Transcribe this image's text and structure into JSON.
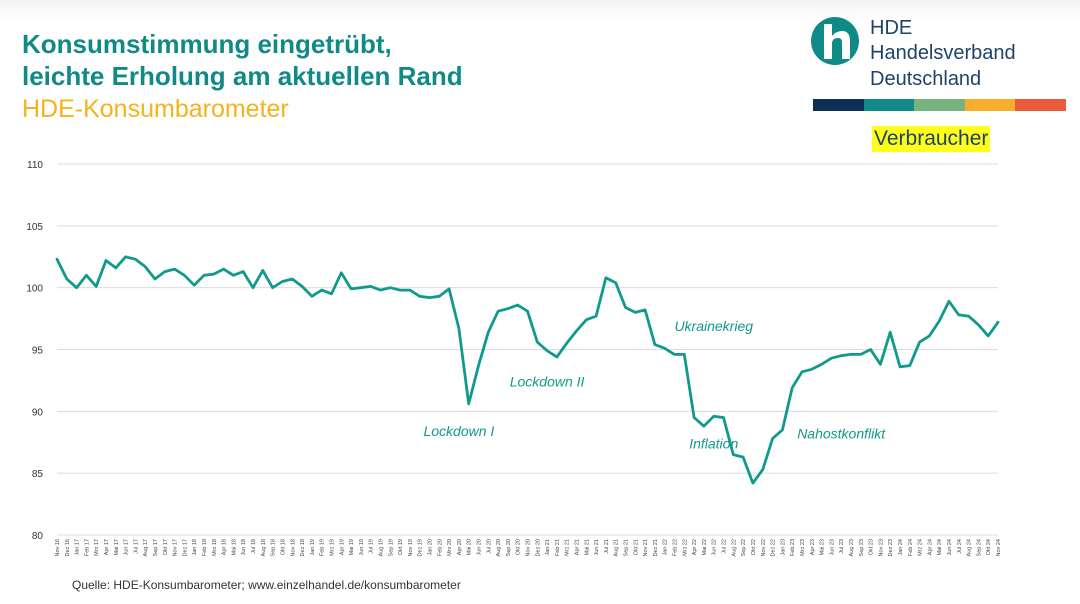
{
  "header": {
    "title_line1": "Konsumstimmung eingetrübt,",
    "title_line2": "leichte Erholung am aktuellen Rand",
    "subtitle": "HDE-Konsumbarometer"
  },
  "logo": {
    "line1": "HDE",
    "line2": "Handelsverband",
    "line3": "Deutschland",
    "stripe_colors": [
      "#0e2f54",
      "#0f8a86",
      "#76b37f",
      "#f7ae2d",
      "#ea5b3a"
    ]
  },
  "badge": {
    "label": "Verbraucher"
  },
  "colors": {
    "line": "#109a8c",
    "title": "#0f8a86",
    "subtitle": "#f5b21b",
    "annotation": "#109a8c",
    "badge_bg": "#ffff1a"
  },
  "source": "Quelle: HDE-Konsumbarometer; www.einzelhandel.de/konsumbarometer",
  "chart_data": {
    "type": "line",
    "title": "",
    "xlabel": "",
    "ylabel": "",
    "ylim": [
      80,
      110
    ],
    "yticks": [
      80,
      85,
      90,
      95,
      100,
      105,
      110
    ],
    "grid": true,
    "x": [
      "Nov 16",
      "Dez 16",
      "Jan 17",
      "Feb 17",
      "Mrz 17",
      "Apr 17",
      "Mai 17",
      "Jun 17",
      "Jul 17",
      "Aug 17",
      "Sep 17",
      "Okt 17",
      "Nov 17",
      "Dez 17",
      "Jan 18",
      "Feb 18",
      "Mrz 18",
      "Apr 18",
      "Mai 18",
      "Jun 18",
      "Jul 18",
      "Aug 18",
      "Sep 18",
      "Okt 18",
      "Nov 18",
      "Dez 18",
      "Jan 19",
      "Feb 19",
      "Mrz 19",
      "Apr 19",
      "Mai 19",
      "Jun 19",
      "Jul 19",
      "Aug 19",
      "Sep 19",
      "Okt 19",
      "Nov 19",
      "Dez 19",
      "Jan 20",
      "Feb 20",
      "Mrz 20",
      "Apr 20",
      "Mai 20",
      "Jun 20",
      "Jul 20",
      "Aug 20",
      "Sep 20",
      "Okt 20",
      "Nov 20",
      "Dez 20",
      "Jan 21",
      "Feb 21",
      "Mrz 21",
      "Apr 21",
      "Mai 21",
      "Jun 21",
      "Jul 21",
      "Aug 21",
      "Sep 21",
      "Okt 21",
      "Nov 21",
      "Dez 21",
      "Jan 22",
      "Feb 22",
      "Mrz 22",
      "Apr 22",
      "Mai 22",
      "Jun 22",
      "Jul 22",
      "Aug 22",
      "Sep 22",
      "Okt 22",
      "Nov 22",
      "Dez 22",
      "Jan 23",
      "Feb 23",
      "Mrz 23",
      "Apr 23",
      "Mai 23",
      "Jun 23",
      "Jul 23",
      "Aug 23",
      "Sep 23",
      "Okt 23",
      "Nov 23",
      "Dez 23",
      "Jan 24",
      "Feb 24",
      "Mrz 24",
      "Apr 24",
      "Mai 24",
      "Jun 24",
      "Jul 24",
      "Aug 24",
      "Sep 24",
      "Okt 24",
      "Nov 24"
    ],
    "series": [
      {
        "values": [
          102.3,
          100.7,
          100.0,
          101.0,
          100.1,
          102.2,
          101.6,
          102.5,
          102.3,
          101.7,
          100.7,
          101.3,
          101.5,
          101.0,
          100.2,
          101.0,
          101.1,
          101.5,
          101.0,
          101.3,
          100.0,
          101.4,
          100.0,
          100.5,
          100.7,
          100.1,
          99.3,
          99.8,
          99.5,
          101.2,
          99.9,
          100.0,
          100.1,
          99.8,
          100.0,
          99.8,
          99.8,
          99.3,
          99.2,
          99.3,
          99.9,
          96.7,
          90.6,
          93.7,
          96.4,
          98.1,
          98.3,
          98.6,
          98.1,
          95.6,
          94.9,
          94.4,
          95.5,
          96.5,
          97.4,
          97.7,
          100.8,
          100.4,
          98.4,
          98.0,
          98.2,
          95.4,
          95.1,
          94.6,
          94.6,
          89.5,
          88.8,
          89.6,
          89.5,
          86.5,
          86.3,
          84.2,
          85.3,
          87.8,
          88.5,
          91.9,
          93.2,
          93.4,
          93.8,
          94.3,
          94.5,
          94.6,
          94.6,
          95.0,
          93.8,
          96.4,
          93.6,
          93.7,
          95.6,
          96.1,
          97.3,
          98.9,
          97.8,
          97.7,
          97.0,
          96.1,
          97.2
        ]
      }
    ],
    "annotations": [
      {
        "text": "Lockdown I",
        "x": "Apr 20",
        "y": 88.0
      },
      {
        "text": "Lockdown II",
        "x": "Jan 21",
        "y": 92.0
      },
      {
        "text": "Ukrainekrieg",
        "x": "Jun 22",
        "y": 96.5
      },
      {
        "text": "Inflation",
        "x": "Jun 22",
        "y": 87.0
      },
      {
        "text": "Nahostkonflikt",
        "x": "Jul 23",
        "y": 87.8
      }
    ]
  }
}
